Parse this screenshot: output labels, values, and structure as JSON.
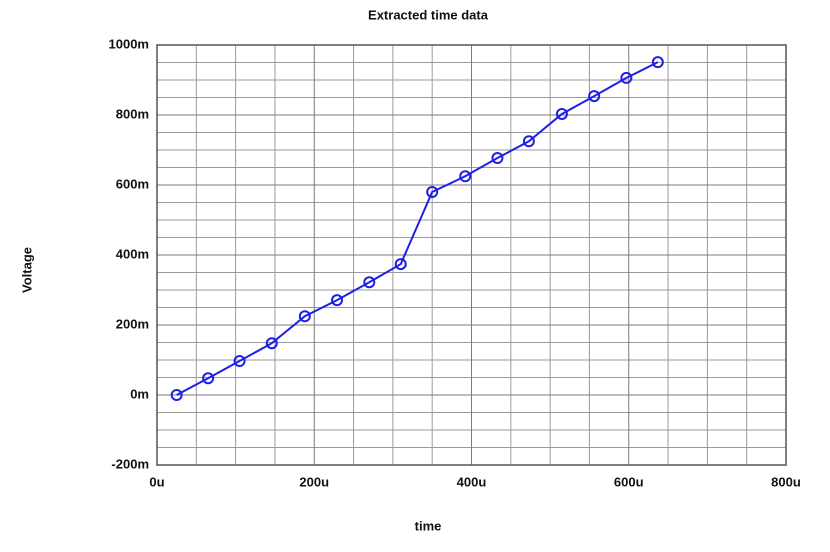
{
  "chart_data": {
    "type": "line",
    "title": "Extracted time data",
    "x_label": "time",
    "y_label": "Voltage",
    "x": [
      25,
      65,
      105,
      146,
      188,
      229,
      270,
      310,
      350,
      392,
      433,
      473,
      515,
      556,
      597,
      637
    ],
    "series": [
      {
        "name": "Voltage",
        "color": "#1f1fe6",
        "values": [
          0,
          48,
          97,
          148,
          225,
          271,
          322,
          374,
          580,
          625,
          677,
          725,
          803,
          854,
          906,
          951
        ]
      }
    ],
    "markers": true,
    "xlim": [
      0,
      800
    ],
    "xticks": [
      {
        "value": 0,
        "label": "0u"
      },
      {
        "value": 200,
        "label": "200u"
      },
      {
        "value": 400,
        "label": "400u"
      },
      {
        "value": 600,
        "label": "600u"
      },
      {
        "value": 800,
        "label": "800u"
      }
    ],
    "ylim": [
      -200,
      1000
    ],
    "yticks": [
      {
        "value": -200,
        "label": "-200m"
      },
      {
        "value": 0,
        "label": "0m"
      },
      {
        "value": 200,
        "label": "200m"
      },
      {
        "value": 400,
        "label": "400m"
      },
      {
        "value": 600,
        "label": "600m"
      },
      {
        "value": 800,
        "label": "800m"
      },
      {
        "value": 1000,
        "label": "1000m"
      }
    ],
    "grid": true,
    "x_minor_divisions": 4,
    "y_minor_divisions": 4
  }
}
